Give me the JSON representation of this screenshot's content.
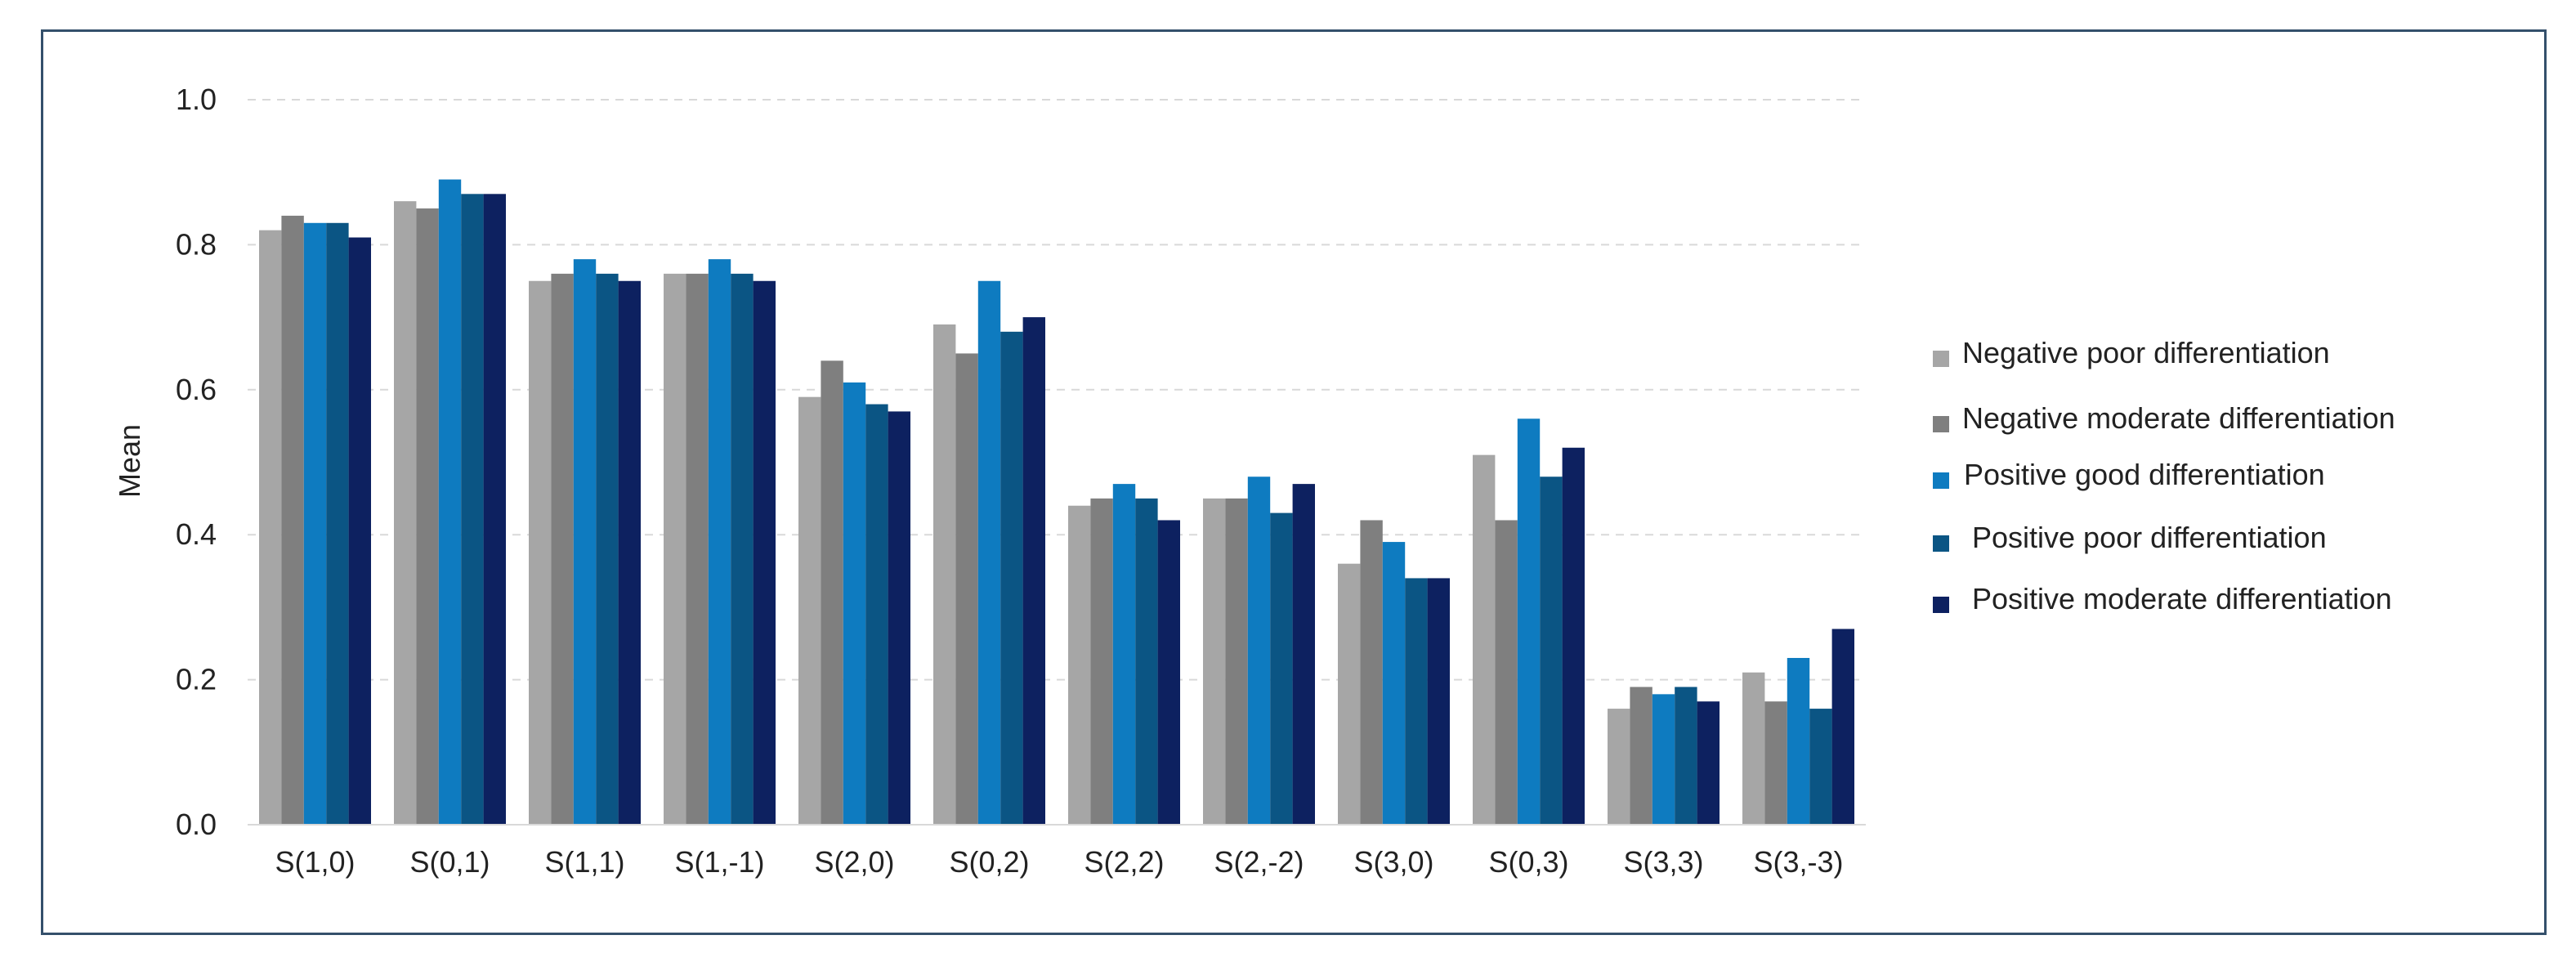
{
  "chart_data": {
    "type": "bar",
    "ylabel": "Mean",
    "ylim": [
      0,
      1.0
    ],
    "yticks": [
      "0.0",
      "0.2",
      "0.4",
      "0.6",
      "0.8",
      "1.0"
    ],
    "grid": "horizontal dashed",
    "legend_position": "right",
    "categories": [
      "S(1,0)",
      "S(0,1)",
      "S(1,1)",
      "S(1,-1)",
      "S(2,0)",
      "S(0,2)",
      "S(2,2)",
      "S(2,-2)",
      "S(3,0)",
      "S(0,3)",
      "S(3,3)",
      "S(3,-3)"
    ],
    "series": [
      {
        "name": "Negative poor differentiation",
        "color": "#a6a6a6",
        "values": [
          0.82,
          0.86,
          0.75,
          0.76,
          0.59,
          0.69,
          0.44,
          0.45,
          0.36,
          0.51,
          0.16,
          0.21
        ]
      },
      {
        "name": "Negative moderate differentiation",
        "color": "#7f7f7f",
        "values": [
          0.84,
          0.85,
          0.76,
          0.76,
          0.64,
          0.65,
          0.45,
          0.45,
          0.42,
          0.42,
          0.19,
          0.17
        ]
      },
      {
        "name": "Positive good differentiation",
        "color": "#0e7bc0",
        "values": [
          0.83,
          0.89,
          0.78,
          0.78,
          0.61,
          0.75,
          0.47,
          0.48,
          0.39,
          0.56,
          0.18,
          0.23
        ]
      },
      {
        "name": "Positive poor differentiation",
        "color": "#0b5584",
        "values": [
          0.83,
          0.87,
          0.76,
          0.76,
          0.58,
          0.68,
          0.45,
          0.43,
          0.34,
          0.48,
          0.19,
          0.16
        ]
      },
      {
        "name": "Positive moderate differentiation",
        "color": "#0d2160",
        "values": [
          0.81,
          0.87,
          0.75,
          0.75,
          0.57,
          0.7,
          0.42,
          0.47,
          0.34,
          0.52,
          0.17,
          0.27
        ]
      }
    ]
  }
}
